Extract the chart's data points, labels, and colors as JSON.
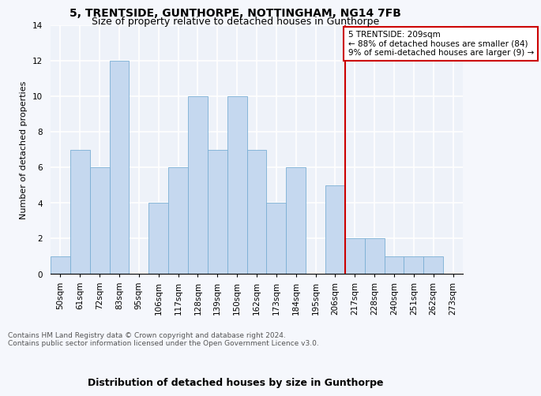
{
  "title": "5, TRENTSIDE, GUNTHORPE, NOTTINGHAM, NG14 7FB",
  "subtitle": "Size of property relative to detached houses in Gunthorpe",
  "xlabel": "Distribution of detached houses by size in Gunthorpe",
  "ylabel": "Number of detached properties",
  "bar_labels": [
    "50sqm",
    "61sqm",
    "72sqm",
    "83sqm",
    "95sqm",
    "106sqm",
    "117sqm",
    "128sqm",
    "139sqm",
    "150sqm",
    "162sqm",
    "173sqm",
    "184sqm",
    "195sqm",
    "206sqm",
    "217sqm",
    "228sqm",
    "240sqm",
    "251sqm",
    "262sqm",
    "273sqm"
  ],
  "bar_values": [
    1,
    7,
    6,
    12,
    0,
    4,
    6,
    10,
    7,
    10,
    7,
    4,
    6,
    0,
    5,
    2,
    2,
    1,
    1,
    1,
    0
  ],
  "bar_color": "#c5d8ef",
  "bar_edge_color": "#7aafd4",
  "ylim": [
    0,
    14
  ],
  "yticks": [
    0,
    2,
    4,
    6,
    8,
    10,
    12,
    14
  ],
  "annotation_text": "5 TRENTSIDE: 209sqm\n← 88% of detached houses are smaller (84)\n9% of semi-detached houses are larger (9) →",
  "annotation_box_color": "#ffffff",
  "annotation_box_edge_color": "#cc0000",
  "vline_color": "#cc0000",
  "footer_line1": "Contains HM Land Registry data © Crown copyright and database right 2024.",
  "footer_line2": "Contains public sector information licensed under the Open Government Licence v3.0.",
  "bg_color": "#eef2f9",
  "grid_color": "#ffffff",
  "title_fontsize": 10,
  "subtitle_fontsize": 9,
  "xlabel_fontsize": 9,
  "ylabel_fontsize": 8,
  "tick_fontsize": 7.5,
  "footer_fontsize": 6.5,
  "vline_x_idx": 14.5
}
